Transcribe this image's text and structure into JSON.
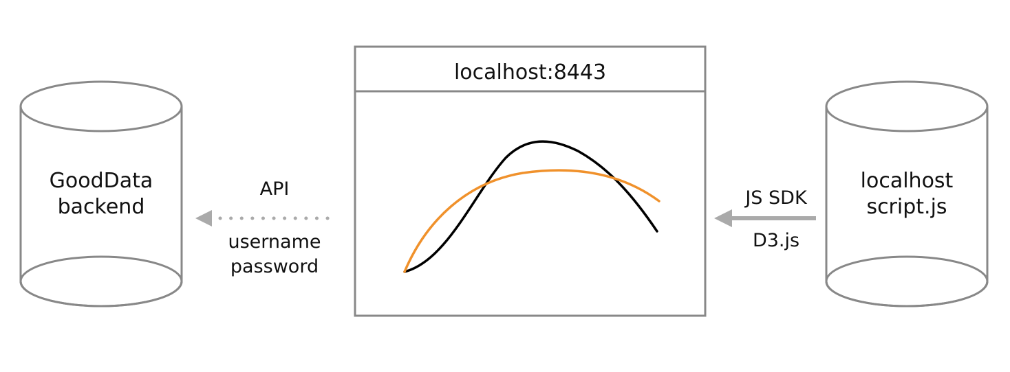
{
  "colors": {
    "outline": "#888888",
    "arrow": "#aaaaaa",
    "curve_primary": "#000000",
    "curve_secondary": "#f0912b",
    "text": "#111111"
  },
  "left_database": {
    "label_line1": "GoodData",
    "label_line2": "backend",
    "shape": "cylinder"
  },
  "left_connection": {
    "top_label": "API",
    "bottom_label_line1": "username",
    "bottom_label_line2": "password",
    "style": "dotted-arrow"
  },
  "browser_window": {
    "title": "localhost:8443",
    "content": "two-curves-chart"
  },
  "right_connection": {
    "top_label": "JS SDK",
    "bottom_label": "D3.js",
    "style": "solid-arrow"
  },
  "right_database": {
    "label_line1": "localhost",
    "label_line2": "script.js",
    "shape": "cylinder"
  }
}
